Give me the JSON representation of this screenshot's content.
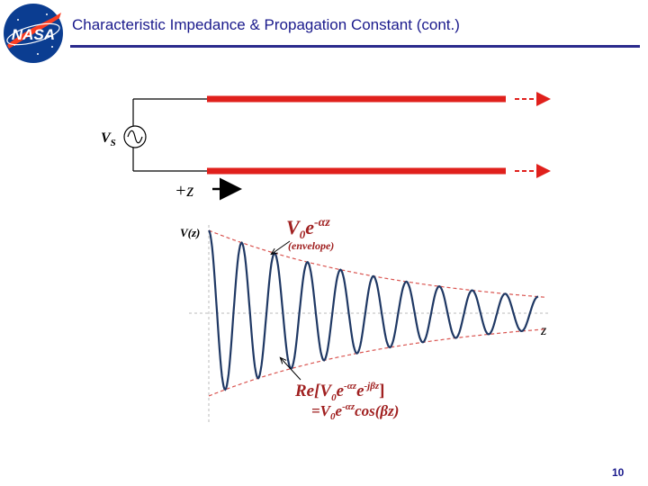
{
  "header": {
    "title": "Characteristic Impedance & Propagation Constant (cont.)",
    "logo_text": "NASA"
  },
  "circuit": {
    "source_label": "V",
    "source_subscript": "S",
    "direction_label": "+z"
  },
  "waveform": {
    "y_label": "V(z)",
    "x_label": "z",
    "envelope_formula_base": "V",
    "envelope_formula_sub": "0",
    "envelope_formula_e": "e",
    "envelope_formula_exp": "-αz",
    "envelope_caption": "(envelope)",
    "signal_formula_prefix": "Re[V",
    "signal_formula_sub": "0",
    "signal_formula_e1": "e",
    "signal_formula_exp1": "-αz",
    "signal_formula_e2": "e",
    "signal_formula_exp2": "-jβz",
    "signal_formula_suffix": "]",
    "signal_result_prefix": "=V",
    "signal_result_sub": "0",
    "signal_result_e": "e",
    "signal_result_exp": "-αz",
    "signal_result_suffix": "cos(βz)",
    "cycles": 10,
    "decay_ratio": 0.2
  },
  "colors": {
    "title": "#1a1a8c",
    "line": "#e0201c",
    "wave": "#1f3864",
    "envelope": "#d9534f",
    "formula": "#a02020"
  },
  "footer": {
    "page_number": "10"
  }
}
